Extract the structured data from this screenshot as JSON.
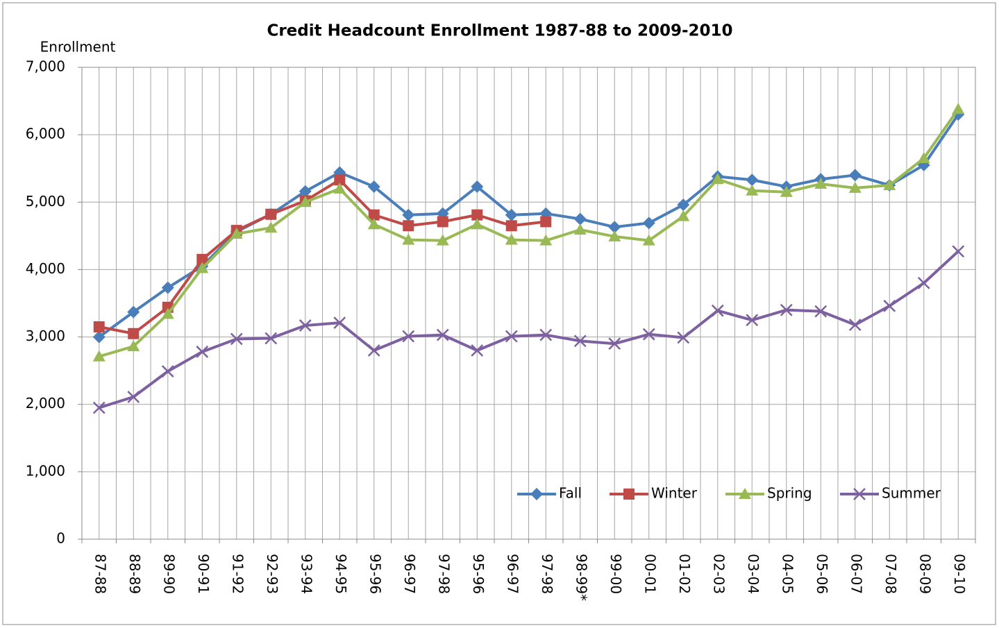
{
  "chart_data": {
    "type": "line",
    "title": "Credit Headcount Enrollment 1987-88 to 2009-2010",
    "y_label": "Enrollment",
    "categories": [
      "87-88",
      "88-89",
      "89-90",
      "90-91",
      "91-92",
      "92-93",
      "93-94",
      "94-95",
      "95-96",
      "96-97",
      "97-98",
      "95-96",
      "96-97",
      "97-98",
      "98-99*",
      "99-00",
      "00-01",
      "01-02",
      "02-03",
      "03-04",
      "04-05",
      "05-06",
      "06-07",
      "07-08",
      "08-09",
      "09-10"
    ],
    "series": [
      {
        "name": "Fall",
        "color": "#4a7ebb",
        "marker": "diamond",
        "values": [
          3000,
          3370,
          3730,
          4050,
          4560,
          4820,
          5160,
          5440,
          5230,
          4810,
          4830,
          5230,
          4810,
          4830,
          4750,
          4630,
          4690,
          4960,
          5380,
          5330,
          5230,
          5340,
          5400,
          5250,
          5550,
          6300
        ]
      },
      {
        "name": "Winter",
        "color": "#be4b48",
        "marker": "square",
        "values": [
          3150,
          3050,
          3440,
          4150,
          4580,
          4820,
          5020,
          5330,
          4810,
          4650,
          4710,
          4810,
          4650,
          4710,
          null,
          null,
          null,
          null,
          null,
          null,
          null,
          null,
          null,
          null,
          null,
          null
        ]
      },
      {
        "name": "Spring",
        "color": "#98b954",
        "marker": "triangle",
        "values": [
          2710,
          2860,
          3340,
          4020,
          4530,
          4620,
          5000,
          5200,
          4670,
          4440,
          4430,
          4670,
          4440,
          4430,
          4590,
          4490,
          4430,
          4790,
          5340,
          5170,
          5150,
          5270,
          5210,
          5250,
          5650,
          6380
        ]
      },
      {
        "name": "Summer",
        "color": "#7d60a0",
        "marker": "x",
        "values": [
          1950,
          2110,
          2490,
          2780,
          2970,
          2980,
          3170,
          3210,
          2800,
          3010,
          3030,
          2800,
          3010,
          3030,
          2940,
          2900,
          3040,
          2990,
          3390,
          3250,
          3400,
          3380,
          3180,
          3460,
          3800,
          4270
        ]
      }
    ],
    "ylim": [
      0,
      7000
    ],
    "yticks": [
      0,
      {
        "value": 1000,
        "label": "1,000"
      },
      {
        "value": 2000,
        "label": "2,000"
      },
      {
        "value": 3000,
        "label": "3,000"
      },
      {
        "value": 4000,
        "label": "4,000"
      },
      {
        "value": 5000,
        "label": "5,000"
      },
      {
        "value": 6000,
        "label": "6,000"
      },
      {
        "value": 7000,
        "label": "7,000"
      }
    ],
    "grid": true,
    "legend": "lower right"
  }
}
